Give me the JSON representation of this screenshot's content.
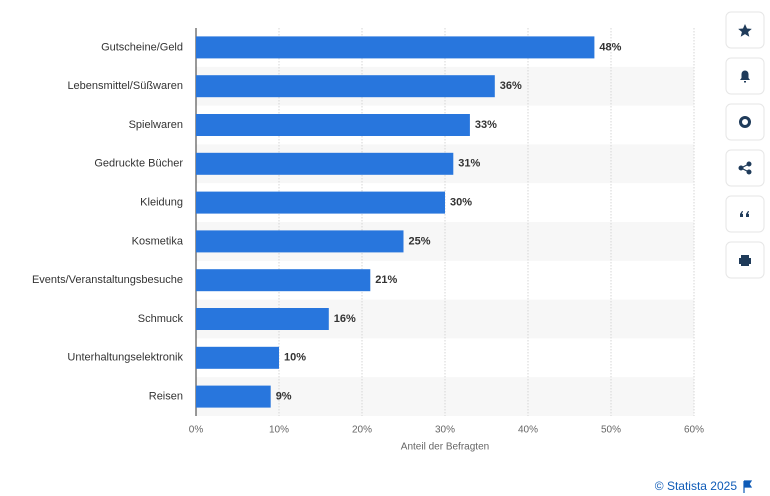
{
  "chart_data": {
    "type": "bar",
    "orientation": "horizontal",
    "x_label": "Anteil der Befragten",
    "credit": "© Statista 2025",
    "categories": [
      "Gutscheine/Geld",
      "Lebensmittel/Süßwaren",
      "Spielwaren",
      "Gedruckte Bücher",
      "Kleidung",
      "Kosmetika",
      "Events/Veranstaltungsbesuche",
      "Schmuck",
      "Unterhaltungselektronik",
      "Reisen"
    ],
    "values": [
      48,
      36,
      33,
      31,
      30,
      25,
      21,
      16,
      10,
      9
    ],
    "value_labels": [
      "48%",
      "36%",
      "33%",
      "31%",
      "30%",
      "25%",
      "21%",
      "16%",
      "10%",
      "9%"
    ],
    "color": "#2876dd",
    "xlim": [
      0,
      60
    ],
    "xticks": [
      {
        "value": 0,
        "label": "0%"
      },
      {
        "value": 10,
        "label": "10%"
      },
      {
        "value": 20,
        "label": "20%"
      },
      {
        "value": 30,
        "label": "30%"
      },
      {
        "value": 40,
        "label": "40%"
      },
      {
        "value": 50,
        "label": "50%"
      },
      {
        "value": 60,
        "label": "60%"
      }
    ],
    "grid": true
  }
}
